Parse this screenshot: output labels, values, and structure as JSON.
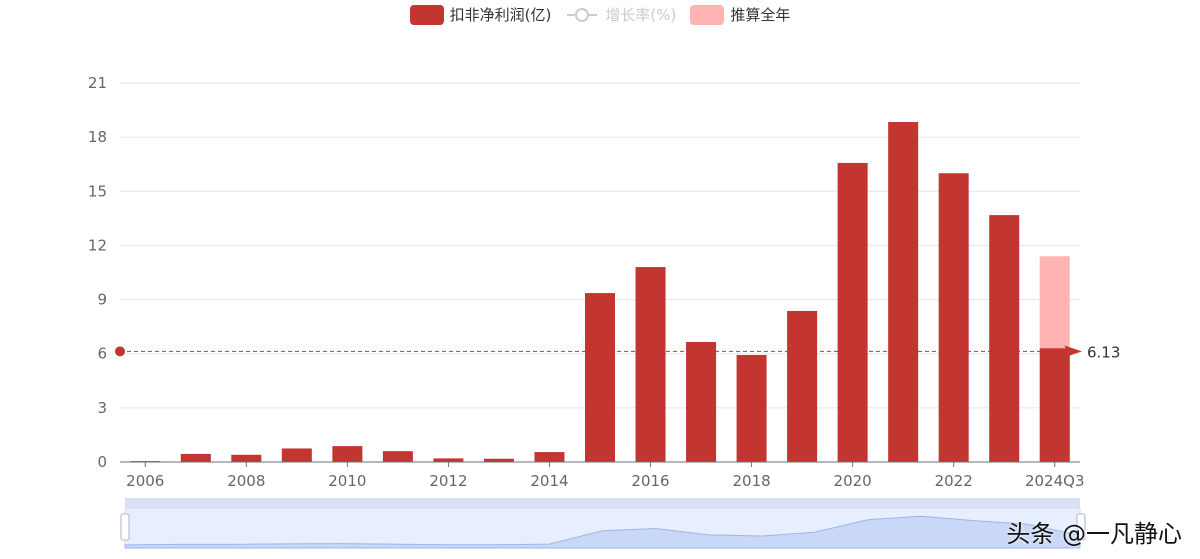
{
  "legend": [
    {
      "name": "扣非净利润(亿)",
      "color": "#c23531",
      "active": true
    },
    {
      "name": "增长率(%)",
      "color": "#cccccc",
      "active": false
    },
    {
      "name": "推算全年",
      "color": "#ffb3b3",
      "active": true
    }
  ],
  "watermark": "头条 @一凡静心",
  "chart_data": {
    "type": "bar",
    "categories": [
      "2006",
      "2007",
      "2008",
      "2009",
      "2010",
      "2011",
      "2012",
      "2013",
      "2014",
      "2015",
      "2016",
      "2017",
      "2018",
      "2019",
      "2020",
      "2021",
      "2022",
      "2023",
      "2024Q3"
    ],
    "x_tick_labels": [
      "2006",
      "2008",
      "2010",
      "2012",
      "2014",
      "2016",
      "2018",
      "2020",
      "2022",
      "2024Q3"
    ],
    "series": [
      {
        "name": "扣非净利润(亿)",
        "values": [
          0.05,
          0.45,
          0.4,
          0.75,
          0.88,
          0.6,
          0.2,
          0.18,
          0.55,
          9.36,
          10.8,
          6.65,
          5.93,
          8.37,
          16.57,
          18.84,
          16.0,
          13.68,
          6.3
        ],
        "color": "#c23531"
      },
      {
        "name": "推算全年",
        "values": [
          null,
          null,
          null,
          null,
          null,
          null,
          null,
          null,
          null,
          null,
          null,
          null,
          null,
          null,
          null,
          null,
          null,
          null,
          11.4
        ],
        "color": "#ffb3b3"
      }
    ],
    "ylim": [
      0,
      21
    ],
    "yticks": [
      0,
      3,
      6,
      9,
      12,
      15,
      18,
      21
    ],
    "grid": true,
    "legend_position": "top",
    "mark_line": {
      "value": 6.13,
      "label": "6.13",
      "color": "#c23531"
    }
  }
}
